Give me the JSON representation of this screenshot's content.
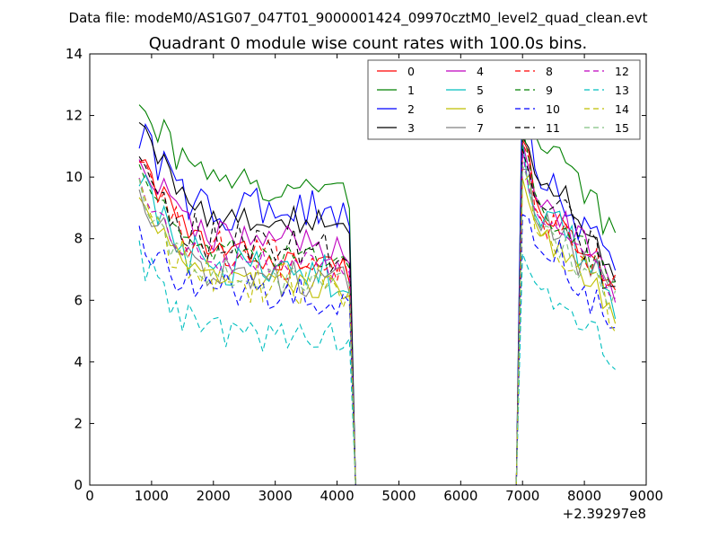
{
  "chart_data": {
    "type": "line",
    "suptitle": "Data file: modeM0/AS1G07_047T01_9000001424_09970cztM0_level2_quad_clean.evt",
    "title": "Quadrant 0 module wise count rates with 100.0s bins.",
    "xlabel": "",
    "ylabel": "",
    "x_offset_label": "+2.39297e8",
    "xlim": [
      0,
      9000
    ],
    "ylim": [
      0,
      14
    ],
    "x_ticks": [
      "0",
      "1000",
      "2000",
      "3000",
      "4000",
      "5000",
      "6000",
      "7000",
      "8000",
      "9000"
    ],
    "y_ticks": [
      "0",
      "2",
      "4",
      "6",
      "8",
      "10",
      "12",
      "14"
    ],
    "grid": false,
    "legend": {
      "position": "top-right",
      "columns": 4
    },
    "series": [
      {
        "name": "0",
        "color": "#ff0000",
        "dash": "solid",
        "bands": [
          [
            10.9,
            7.6,
            7.0
          ],
          [
            11.4,
            8.5,
            6.0
          ]
        ]
      },
      {
        "name": "1",
        "color": "#008000",
        "dash": "solid",
        "bands": [
          [
            12.8,
            9.8,
            9.5
          ],
          [
            13.4,
            10.8,
            7.9
          ]
        ]
      },
      {
        "name": "2",
        "color": "#0000ff",
        "dash": "solid",
        "bands": [
          [
            11.4,
            8.9,
            9.0
          ],
          [
            12.9,
            9.4,
            6.8
          ]
        ]
      },
      {
        "name": "3",
        "color": "#000000",
        "dash": "solid",
        "bands": [
          [
            12.0,
            8.7,
            8.5
          ],
          [
            11.6,
            9.6,
            6.6
          ]
        ]
      },
      {
        "name": "4",
        "color": "#bf00bf",
        "dash": "solid",
        "bands": [
          [
            10.8,
            8.1,
            7.6
          ],
          [
            11.2,
            8.9,
            6.1
          ]
        ]
      },
      {
        "name": "5",
        "color": "#00bfbf",
        "dash": "solid",
        "bands": [
          [
            9.9,
            7.0,
            6.7
          ],
          [
            10.8,
            8.3,
            5.8
          ]
        ]
      },
      {
        "name": "6",
        "color": "#bfbf00",
        "dash": "solid",
        "bands": [
          [
            9.4,
            6.6,
            6.4
          ],
          [
            10.4,
            7.7,
            5.6
          ]
        ]
      },
      {
        "name": "7",
        "color": "#808080",
        "dash": "solid",
        "bands": [
          [
            9.6,
            6.9,
            6.5
          ],
          [
            10.5,
            8.0,
            6.2
          ]
        ]
      },
      {
        "name": "8",
        "color": "#ff0000",
        "dash": "dashed",
        "bands": [
          [
            10.4,
            7.5,
            6.9
          ],
          [
            11.0,
            8.4,
            6.3
          ]
        ]
      },
      {
        "name": "9",
        "color": "#008000",
        "dash": "dashed",
        "bands": [
          [
            10.3,
            7.6,
            7.2
          ],
          [
            11.3,
            8.6,
            6.4
          ]
        ]
      },
      {
        "name": "10",
        "color": "#0000ff",
        "dash": "dashed",
        "bands": [
          [
            8.2,
            6.3,
            6.1
          ],
          [
            9.2,
            7.4,
            5.0
          ]
        ]
      },
      {
        "name": "11",
        "color": "#000000",
        "dash": "dashed",
        "bands": [
          [
            10.3,
            7.8,
            7.4
          ],
          [
            11.0,
            8.8,
            6.5
          ]
        ]
      },
      {
        "name": "12",
        "color": "#bf00bf",
        "dash": "dashed",
        "bands": [
          [
            9.7,
            7.3,
            7.0
          ],
          [
            10.6,
            8.1,
            6.2
          ]
        ]
      },
      {
        "name": "13",
        "color": "#00bfbf",
        "dash": "dashed",
        "bands": [
          [
            7.5,
            5.0,
            4.8
          ],
          [
            8.1,
            6.0,
            4.1
          ]
        ]
      },
      {
        "name": "14",
        "color": "#bfbf00",
        "dash": "dashed",
        "bands": [
          [
            9.3,
            6.7,
            6.4
          ],
          [
            10.1,
            7.6,
            5.6
          ]
        ]
      },
      {
        "name": "15",
        "color": "#80c080",
        "dash": "dashed",
        "bands": [
          [
            9.5,
            6.8,
            6.5
          ],
          [
            10.3,
            7.8,
            5.9
          ]
        ]
      }
    ],
    "segments": [
      [
        800,
        4200
      ],
      [
        7000,
        8500
      ]
    ],
    "gap": [
      4300,
      6900
    ]
  }
}
